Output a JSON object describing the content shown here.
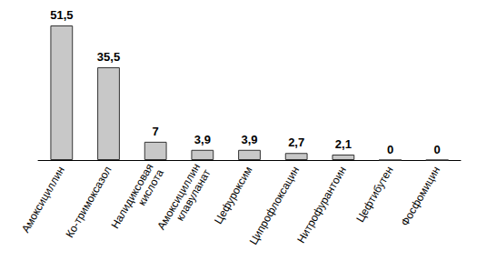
{
  "chart_data": {
    "type": "bar",
    "categories": [
      "Амоксициллин",
      "Ко-тримоксазол",
      "Налидиксовая кислота",
      "Амоксициллин клавуланат",
      "Цефуроксим",
      "Ципрофлоксацин",
      "Нитрофурантоин",
      "Цефтибутен",
      "Фосфомицин"
    ],
    "values": [
      51.5,
      35.5,
      7,
      3.9,
      3.9,
      2.7,
      2.1,
      0,
      0
    ],
    "value_labels": [
      "51,5",
      "35,5",
      "7",
      "3,9",
      "3,9",
      "2,7",
      "2,1",
      "0",
      "0"
    ],
    "color": "#c8c8c8",
    "data_labels": true,
    "tick_labels": "x",
    "grid": false
  }
}
